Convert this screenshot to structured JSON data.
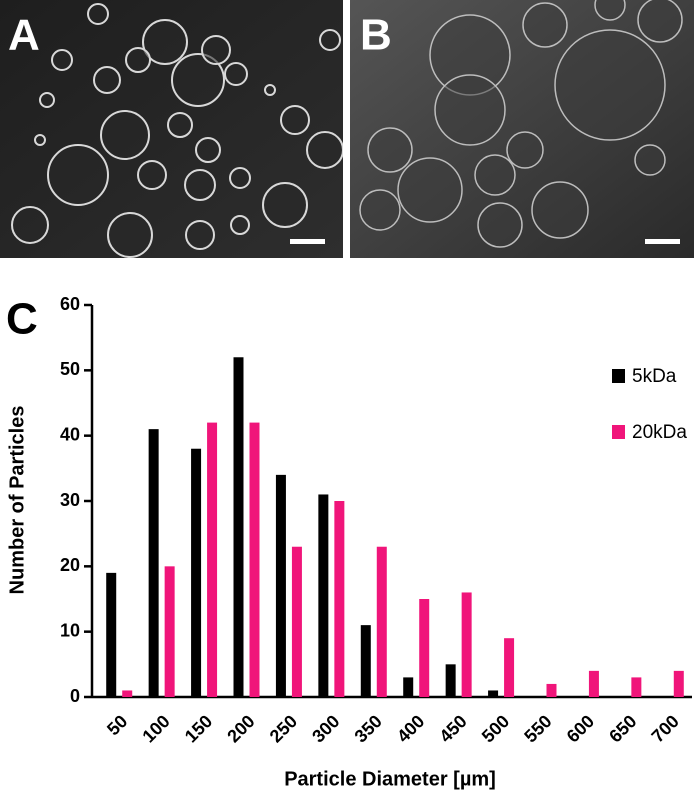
{
  "panel_labels": [
    "A",
    "B",
    "C"
  ],
  "chart_data": {
    "type": "bar",
    "xlabel": "Particle Diameter [µm]",
    "ylabel": "Number of Particles",
    "categories": [
      "50",
      "100",
      "150",
      "200",
      "250",
      "300",
      "350",
      "400",
      "450",
      "500",
      "550",
      "600",
      "650",
      "700"
    ],
    "series": [
      {
        "name": "5kDa",
        "color": "#000000",
        "values": [
          19,
          41,
          38,
          52,
          34,
          31,
          11,
          3,
          5,
          1,
          0,
          0,
          0,
          0
        ]
      },
      {
        "name": "20kDa",
        "color": "#f0157a",
        "values": [
          1,
          20,
          42,
          42,
          23,
          30,
          23,
          15,
          16,
          9,
          2,
          4,
          3,
          4
        ]
      }
    ],
    "ylim": [
      0,
      60
    ],
    "yticks": [
      0,
      10,
      20,
      30,
      40,
      50,
      60
    ],
    "legend": "upper right"
  }
}
